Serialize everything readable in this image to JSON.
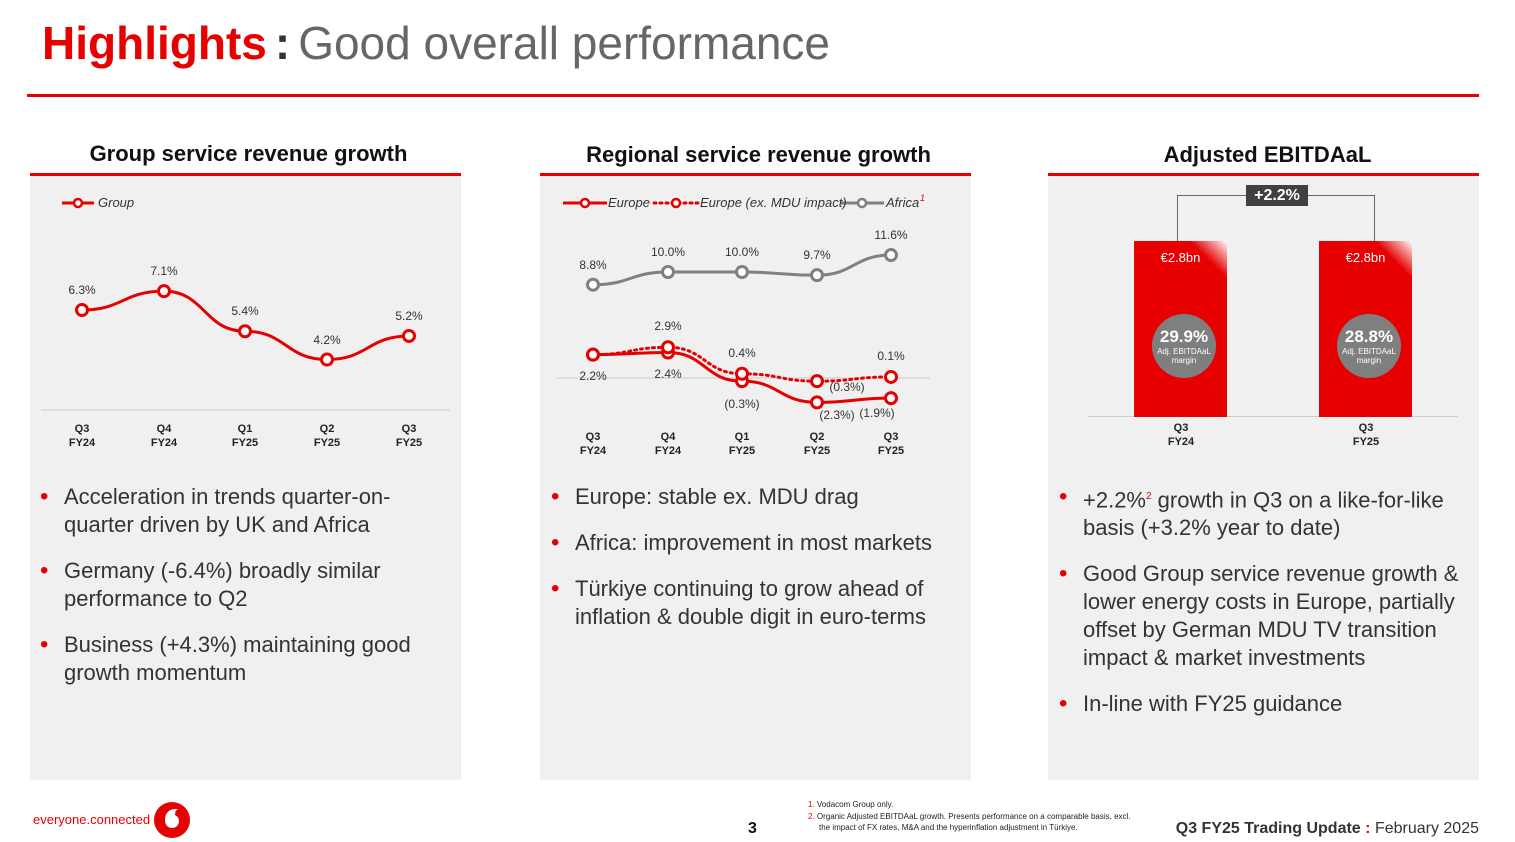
{
  "header": {
    "title_bold": "Highlights",
    "separator": ":",
    "title_light": "Good overall performance"
  },
  "panels": [
    {
      "title": "Group service revenue growth",
      "bullets": [
        "Acceleration in trends quarter-on-quarter driven by UK and Africa",
        "Germany (-6.4%) broadly similar performance to Q2",
        "Business (+4.3%) maintaining good growth momentum"
      ]
    },
    {
      "title": "Regional service revenue growth",
      "bullets": [
        "Europe: stable ex. MDU drag",
        "Africa: improvement in most markets",
        "Türkiye continuing to grow ahead of inflation & double digit in euro-terms"
      ]
    },
    {
      "title": "Adjusted EBITDAaL",
      "bullets_html": [
        {
          "a": "+2.2%",
          "sup": "2",
          "b": " growth in Q3 on a like-for-like basis (+3.2% year to date)"
        }
      ],
      "bullets": [
        "Good Group service revenue growth & lower energy costs in Europe, partially offset by German MDU TV transition impact & market investments",
        "In-line with FY25 guidance"
      ]
    }
  ],
  "colors": {
    "accent": "#e60000",
    "africa": "#808080",
    "circle": "#7f7f7f",
    "growth_box": "#404040"
  },
  "chart_data": [
    {
      "type": "line",
      "categories": [
        "Q3\nFY24",
        "Q4\nFY24",
        "Q1\nFY25",
        "Q2\nFY25",
        "Q3\nFY25"
      ],
      "series": [
        {
          "name": "Group",
          "values": [
            6.3,
            7.1,
            5.4,
            4.2,
            5.2
          ],
          "labels": [
            "6.3%",
            "7.1%",
            "5.4%",
            "4.2%",
            "5.2%"
          ],
          "style": "solid",
          "color": "#e60000"
        }
      ]
    },
    {
      "type": "line",
      "categories": [
        "Q3\nFY24",
        "Q4\nFY24",
        "Q1\nFY25",
        "Q2\nFY25",
        "Q3\nFY25"
      ],
      "series": [
        {
          "name": "Europe",
          "values": [
            2.2,
            2.4,
            -0.3,
            -2.3,
            -1.9
          ],
          "labels": [
            "2.2%",
            "2.4%",
            "(0.3%)",
            "(2.3%)",
            "(1.9%)"
          ],
          "style": "solid",
          "color": "#e60000"
        },
        {
          "name": "Europe (ex. MDU impact)",
          "values": [
            2.2,
            2.9,
            0.4,
            -0.3,
            0.1
          ],
          "labels": [
            "",
            "2.9%",
            "0.4%",
            "(0.3%)",
            "0.1%"
          ],
          "style": "dotted",
          "color": "#e60000"
        },
        {
          "name": "Africa",
          "sup": "1",
          "values": [
            8.8,
            10.0,
            10.0,
            9.7,
            11.6
          ],
          "labels": [
            "8.8%",
            "10.0%",
            "10.0%",
            "9.7%",
            "11.6%"
          ],
          "style": "solid",
          "color": "#808080"
        }
      ]
    },
    {
      "type": "bar",
      "categories": [
        "Q3\nFY24",
        "Q3\nFY25"
      ],
      "values": [
        2.8,
        2.8
      ],
      "value_labels": [
        "€2.8bn",
        "€2.8bn"
      ],
      "margins": [
        "29.9%",
        "28.8%"
      ],
      "margin_label": "Adj. EBITDAaL margin",
      "growth": "+2.2%"
    }
  ],
  "footer": {
    "brand": "everyone.connected",
    "page": "3",
    "footnotes": [
      {
        "n": "1.",
        "t": "Vodacom Group only."
      },
      {
        "n": "2.",
        "t": "Organic Adjusted EBITDAaL growth. Presents performance on a comparable basis, excl. the impact of FX rates, M&A and the hyperinflation adjustment in Türkiye."
      }
    ],
    "event": "Q3 FY25 Trading Update",
    "sep": ":",
    "date": "February 2025"
  }
}
